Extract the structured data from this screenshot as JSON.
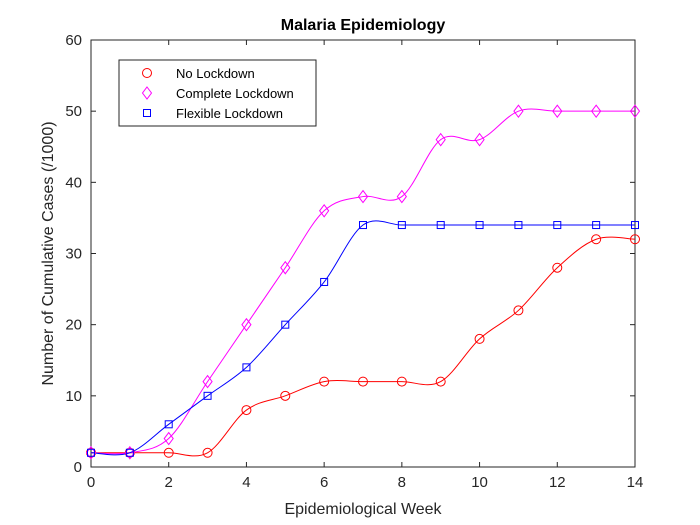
{
  "chart_data": {
    "type": "line",
    "title": "Malaria Epidemiology",
    "xlabel": "Epidemiological Week",
    "ylabel": "Number of Cumulative Cases (/1000)",
    "xlim": [
      0,
      14
    ],
    "ylim": [
      0,
      60
    ],
    "xticks": [
      0,
      2,
      4,
      6,
      8,
      10,
      12,
      14
    ],
    "yticks": [
      0,
      10,
      20,
      30,
      40,
      50,
      60
    ],
    "grid": false,
    "legend_position": "top-left",
    "x": [
      0,
      1,
      2,
      3,
      4,
      5,
      6,
      7,
      8,
      9,
      10,
      11,
      12,
      13,
      14
    ],
    "series": [
      {
        "name": "No Lockdown",
        "marker": "circle",
        "color": "#ff0000",
        "values": [
          2,
          2,
          2,
          2,
          8,
          10,
          12,
          12,
          12,
          12,
          18,
          22,
          28,
          32,
          32
        ]
      },
      {
        "name": "Complete Lockdown",
        "marker": "diamond",
        "color": "#ff00ff",
        "values": [
          2,
          2,
          4,
          12,
          20,
          28,
          36,
          38,
          38,
          46,
          46,
          50,
          50,
          50,
          50
        ]
      },
      {
        "name": "Flexible Lockdown",
        "marker": "square",
        "color": "#0000ff",
        "values": [
          2,
          2,
          6,
          10,
          14,
          20,
          26,
          34,
          34,
          34,
          34,
          34,
          34,
          34,
          34
        ]
      }
    ]
  }
}
